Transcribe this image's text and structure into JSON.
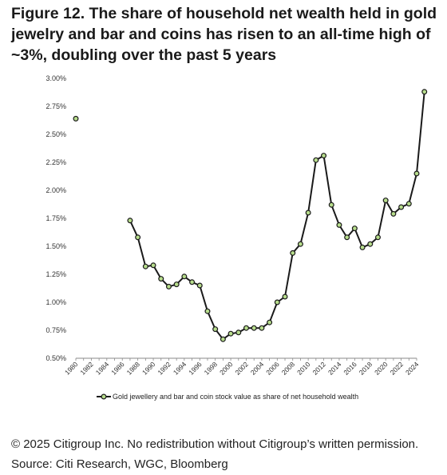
{
  "header": {
    "title": "Figure 12. The share of household net wealth held in gold jewelry and bar and coins has risen to an all-time high of ~3%, doubling over the past 5 years"
  },
  "footer": {
    "copyright": "© 2025 Citigroup Inc. No redistribution without Citigroup’s written permission.",
    "source": "Source: Citi Research, WGC, Bloomberg"
  },
  "colors": {
    "line": "#1a1a1a",
    "marker_fill": "#b7dd8c",
    "marker_stroke": "#1a1a1a",
    "axis": "#8a8a8a",
    "text": "#333333"
  },
  "chart_data": {
    "type": "line",
    "title": "",
    "xlabel": "",
    "ylabel": "",
    "ylim": [
      0.005,
      0.03
    ],
    "xlim": [
      1980,
      2024
    ],
    "y_ticks": [
      "0.50%",
      "0.75%",
      "1.00%",
      "1.25%",
      "1.50%",
      "1.75%",
      "2.00%",
      "2.25%",
      "2.50%",
      "2.75%",
      "3.00%"
    ],
    "x_ticks": [
      "1980",
      "1982",
      "1984",
      "1986",
      "1988",
      "1990",
      "1992",
      "1994",
      "1996",
      "1998",
      "2000",
      "2002",
      "2004",
      "2006",
      "2008",
      "2010",
      "2012",
      "2014",
      "2016",
      "2018",
      "2020",
      "2022",
      "2024"
    ],
    "grid": false,
    "legend_position": "bottom",
    "series": [
      {
        "name": "Gold jewellery and bar and coin stock value as share of net household wealth",
        "x": [
          1980,
          1987,
          1988,
          1989,
          1990,
          1991,
          1992,
          1993,
          1994,
          1995,
          1996,
          1997,
          1998,
          1999,
          2000,
          2001,
          2002,
          2003,
          2004,
          2005,
          2006,
          2007,
          2008,
          2009,
          2010,
          2011,
          2012,
          2013,
          2014,
          2015,
          2016,
          2017,
          2018,
          2019,
          2020,
          2021,
          2022,
          2023,
          2024,
          2025
        ],
        "values": [
          0.0264,
          0.0173,
          0.0158,
          0.0132,
          0.0133,
          0.0121,
          0.0114,
          0.0116,
          0.0123,
          0.0118,
          0.0115,
          0.0092,
          0.0076,
          0.0067,
          0.0072,
          0.0073,
          0.0077,
          0.0077,
          0.0077,
          0.0082,
          0.01,
          0.0105,
          0.0144,
          0.0152,
          0.018,
          0.0227,
          0.0231,
          0.0187,
          0.0169,
          0.0158,
          0.0166,
          0.0149,
          0.0152,
          0.0158,
          0.0191,
          0.0179,
          0.0185,
          0.0188,
          0.0215,
          0.0288
        ],
        "segments": [
          [
            0,
            0
          ],
          [
            1,
            39
          ]
        ]
      }
    ]
  }
}
